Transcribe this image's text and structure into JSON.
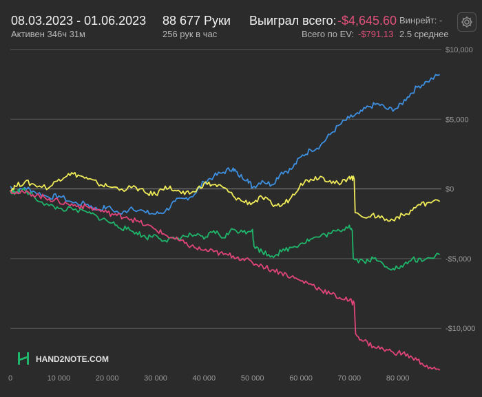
{
  "header": {
    "date_range": "08.03.2023 - 01.06.2023",
    "active_time": "Активен 346ч 31м",
    "hands": "88 677 Руки",
    "hands_rate": "256 рук в час",
    "won_total_label": "Выиграл всего:",
    "won_total_value": "-$4,645.60",
    "ev_label": "Всего по EV:",
    "ev_value": "-$791.13",
    "winrate_label": "Винрейт: -",
    "winrate_sub": "2.5 среднее"
  },
  "logo": {
    "text": "HAND2NOTE.COM",
    "icon": "h2n-logo-icon"
  },
  "settings": {
    "icon": "gear-icon"
  },
  "colors": {
    "blue": "#3d8fe0",
    "yellow": "#f0ec58",
    "green": "#1fb56a",
    "red": "#e0447a",
    "grid": "#5a5a5a",
    "zero": "#8a8a8a",
    "axis_text": "#9a9a9a"
  },
  "chart_data": {
    "type": "line",
    "xlim": [
      0,
      89000
    ],
    "ylim": [
      -13000,
      10000
    ],
    "x_ticks": [
      0,
      10000,
      20000,
      30000,
      40000,
      50000,
      60000,
      70000,
      80000
    ],
    "x_tick_labels": [
      "0",
      "10 000",
      "20 000",
      "30 000",
      "40 000",
      "50 000",
      "60 000",
      "70 000",
      "80 000"
    ],
    "y_ticks": [
      10000,
      5000,
      0,
      -5000,
      -10000
    ],
    "y_tick_labels": [
      "$10,000",
      "$5,000",
      "$0",
      "-$5,000",
      "-$10,000"
    ],
    "grid": true,
    "series": [
      {
        "color": "blue",
        "x": [
          0,
          1000,
          3000,
          5000,
          8000,
          10000,
          13000,
          16000,
          18000,
          20000,
          23000,
          25000,
          28000,
          30000,
          32000,
          34000,
          36000,
          38000,
          40000,
          42000,
          44000,
          46000,
          47000,
          49000,
          50000,
          52000,
          54000,
          56000,
          58000,
          60000,
          62000,
          64000,
          66000,
          68000,
          70000,
          72000,
          74000,
          76000,
          78000,
          80000,
          82000,
          84000,
          86000,
          88677
        ],
        "y": [
          200,
          -300,
          100,
          -200,
          -600,
          -500,
          -1000,
          -1100,
          -1500,
          -1300,
          -1800,
          -1300,
          -1700,
          -1800,
          -1600,
          -900,
          -700,
          -400,
          500,
          900,
          1200,
          1500,
          1000,
          700,
          100,
          600,
          300,
          1200,
          1400,
          2300,
          2800,
          3100,
          3900,
          4600,
          5100,
          5400,
          5900,
          6100,
          5700,
          5800,
          6600,
          7300,
          7700,
          8200
        ]
      },
      {
        "color": "yellow",
        "x": [
          0,
          1000,
          3000,
          5000,
          8000,
          10000,
          12000,
          14000,
          16000,
          18000,
          20000,
          23000,
          26000,
          28000,
          30000,
          32000,
          34000,
          36000,
          38000,
          40000,
          42000,
          44000,
          46000,
          48000,
          50000,
          52000,
          54000,
          56000,
          58000,
          60000,
          62000,
          64000,
          66000,
          68000,
          70000,
          71000,
          71200,
          74000,
          76000,
          78000,
          80000,
          82000,
          84000,
          86000,
          88677
        ],
        "y": [
          -100,
          200,
          500,
          300,
          100,
          700,
          1100,
          1000,
          700,
          400,
          200,
          0,
          100,
          -300,
          -400,
          200,
          -100,
          -400,
          -200,
          400,
          300,
          100,
          -500,
          -900,
          -1000,
          -600,
          -1100,
          -1200,
          -600,
          400,
          700,
          900,
          600,
          300,
          900,
          700,
          -1700,
          -2000,
          -1900,
          -2300,
          -2000,
          -1800,
          -1200,
          -1000,
          -900
        ]
      },
      {
        "color": "green",
        "x": [
          0,
          1000,
          3000,
          5000,
          8000,
          10000,
          13000,
          16000,
          18000,
          20000,
          22000,
          24000,
          26000,
          28000,
          30000,
          32000,
          34000,
          36000,
          38000,
          40000,
          42000,
          44000,
          46000,
          48000,
          50000,
          50300,
          52000,
          54000,
          56000,
          58000,
          60000,
          62000,
          64000,
          66000,
          68000,
          70000,
          70600,
          70800,
          73000,
          75000,
          77000,
          79000,
          81000,
          83000,
          85000,
          88677
        ],
        "y": [
          -300,
          -200,
          -100,
          -600,
          -1200,
          -1400,
          -1500,
          -1700,
          -2000,
          -2300,
          -2600,
          -2900,
          -3100,
          -3500,
          -3300,
          -3700,
          -3600,
          -3400,
          -3300,
          -3600,
          -3000,
          -3500,
          -2900,
          -3100,
          -2900,
          -4100,
          -4500,
          -4800,
          -4500,
          -4200,
          -3900,
          -3600,
          -3400,
          -3200,
          -3000,
          -2600,
          -3000,
          -5000,
          -5200,
          -5000,
          -5400,
          -5700,
          -5600,
          -5000,
          -5200,
          -4700
        ]
      },
      {
        "color": "red",
        "x": [
          0,
          2000,
          4000,
          6000,
          8000,
          10000,
          12000,
          14000,
          16000,
          18000,
          20000,
          22000,
          24000,
          26000,
          28000,
          30000,
          32000,
          34000,
          36000,
          38000,
          40000,
          42000,
          44000,
          46000,
          48000,
          50000,
          52000,
          54000,
          56000,
          58000,
          60000,
          62000,
          64000,
          66000,
          68000,
          70000,
          71000,
          71300,
          73000,
          75000,
          77000,
          79000,
          81000,
          83000,
          85000,
          87000,
          88677
        ],
        "y": [
          -100,
          -300,
          -300,
          -500,
          -700,
          -900,
          -1100,
          -1200,
          -1300,
          -1500,
          -1700,
          -1900,
          -2000,
          -2300,
          -2600,
          -2900,
          -3300,
          -3600,
          -3900,
          -4200,
          -4400,
          -4500,
          -4700,
          -4800,
          -5000,
          -5300,
          -5500,
          -5800,
          -6000,
          -6300,
          -6600,
          -6800,
          -7200,
          -7500,
          -7800,
          -8000,
          -8200,
          -10400,
          -10900,
          -11300,
          -11500,
          -11700,
          -11800,
          -12100,
          -12500,
          -12900,
          -13000
        ]
      }
    ]
  }
}
